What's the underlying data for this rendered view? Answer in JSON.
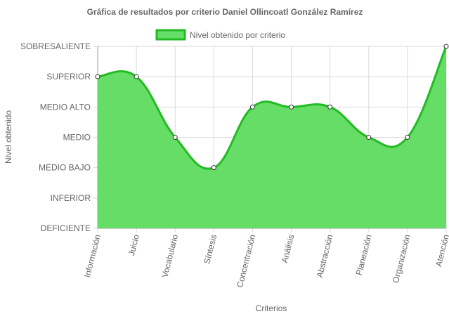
{
  "chart_data": {
    "type": "area",
    "title": "Gráfica de resultados por criterio Daniel Ollincoatl González Ramírez",
    "xlabel": "Criterios",
    "ylabel": "Nivel obtenido",
    "y_levels": [
      "DEFICIENTE",
      "INFERIOR",
      "MEDIO BAJO",
      "MEDIO",
      "MEDIO ALTO",
      "SUPERIOR",
      "SOBRESALIENTE"
    ],
    "categories": [
      "Información",
      "Juicio",
      "Vocabulario",
      "Síntesis",
      "Concentración",
      "Análisis",
      "Abstracción",
      "Planeación",
      "Organización",
      "Atención"
    ],
    "series": [
      {
        "name": "Nivel obtenido por criterio",
        "values": [
          "SUPERIOR",
          "SUPERIOR",
          "MEDIO",
          "MEDIO BAJO",
          "MEDIO ALTO",
          "MEDIO ALTO",
          "MEDIO ALTO",
          "MEDIO",
          "MEDIO",
          "SOBRESALIENTE"
        ]
      }
    ],
    "grid": true,
    "legend_position": "top",
    "colors": {
      "fill": "#66dd66",
      "line": "#22bb22",
      "grid": "#d9d9d9",
      "axis": "#999999",
      "text": "#666666",
      "point_fill": "#ffffff",
      "point_stroke": "#333333"
    }
  }
}
